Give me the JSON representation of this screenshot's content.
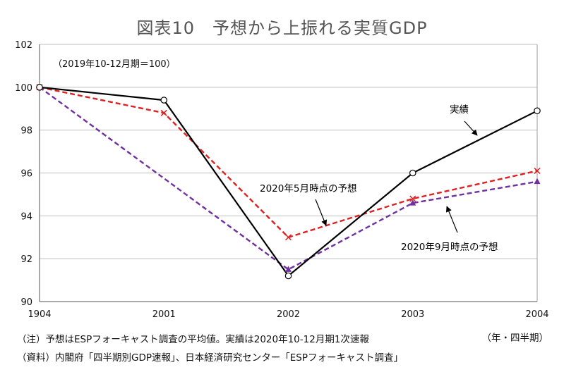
{
  "title": "図表10　予想から上振れる実質GDP",
  "note_base": "（2019年10-12月期＝100）",
  "x_unit": "（年・四半期）",
  "footnotes": {
    "note": "（注）予想はESPフォーキャスト調査の平均値。実績は2020年10-12月期1次速報",
    "source": "（資料）内閣府「四半期別GDP速報」、日本経済研究センター「ESPフォーキャスト調査」"
  },
  "colors": {
    "actual": "#000000",
    "may_forecast": "#e02020",
    "sep_forecast": "#7030a0",
    "grid": "#bfbfbf"
  },
  "chart_data": {
    "type": "line",
    "categories": [
      "1904",
      "2001",
      "2002",
      "2003",
      "2004"
    ],
    "ylim": [
      90,
      102
    ],
    "yticks": [
      90,
      92,
      94,
      96,
      98,
      100,
      102
    ],
    "grid": "horizontal",
    "series": [
      {
        "name": "実績",
        "style": "solid",
        "marker": "circle",
        "color": "#000000",
        "values": [
          100,
          99.4,
          91.2,
          96.0,
          98.9
        ]
      },
      {
        "name": "2020年5月時点の予想",
        "style": "dashed",
        "marker": "x",
        "color": "#e02020",
        "values": [
          100,
          98.8,
          93.0,
          94.8,
          96.1
        ]
      },
      {
        "name": "2020年9月時点の予想",
        "style": "dashed",
        "marker": "triangle",
        "color": "#7030a0",
        "values": [
          100,
          null,
          91.5,
          94.6,
          95.6
        ]
      }
    ]
  }
}
